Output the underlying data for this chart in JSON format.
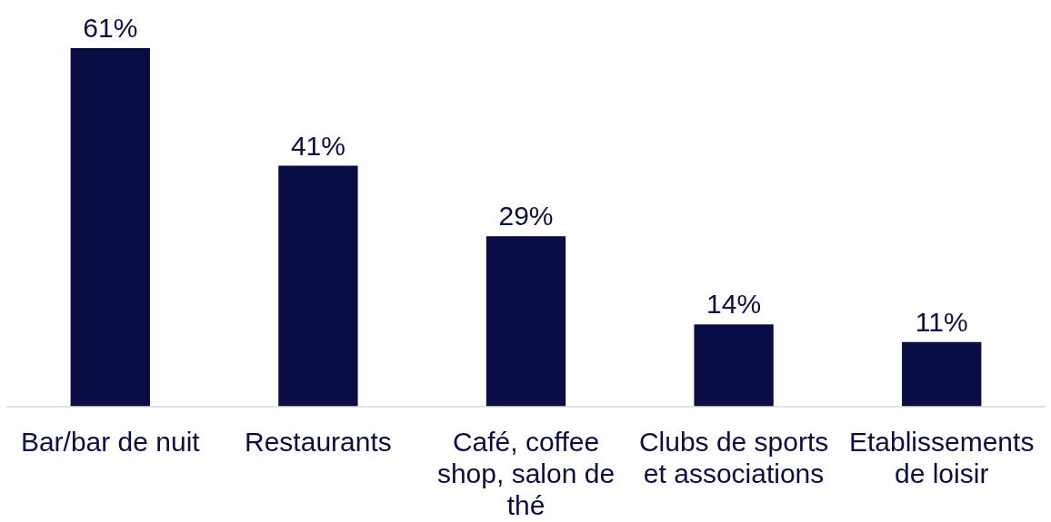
{
  "chart_data": {
    "type": "bar",
    "categories": [
      "Bar/bar de nuit",
      "Restaurants",
      "Café, coffee shop, salon de thé",
      "Clubs de sports et associations",
      "Etablissements de loisir"
    ],
    "values": [
      61,
      41,
      29,
      14,
      11
    ],
    "value_labels": [
      "61%",
      "41%",
      "29%",
      "14%",
      "11%"
    ],
    "color": "#0a0c45"
  }
}
